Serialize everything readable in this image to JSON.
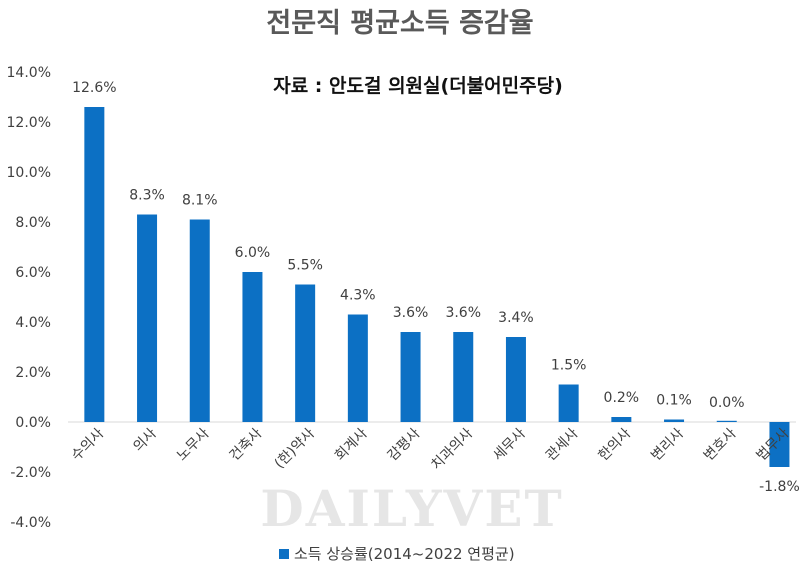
{
  "chart_data": {
    "type": "bar",
    "title": "전문직 평균소득 증감율",
    "subtitle": "자료 : 안도걸 의원실(더불어민주당)",
    "categories": [
      "수의사",
      "의사",
      "노무사",
      "건축사",
      "(한)약사",
      "회계사",
      "감평사",
      "치과의사",
      "세무사",
      "관세사",
      "한의사",
      "변리사",
      "변호사",
      "법무사"
    ],
    "series": [
      {
        "name": "소득 상승률(2014~2022 연평균)",
        "values": [
          12.6,
          8.3,
          8.1,
          6.0,
          5.5,
          4.3,
          3.6,
          3.6,
          3.4,
          1.5,
          0.2,
          0.1,
          0.0,
          -1.8
        ],
        "labels": [
          "12.6%",
          "8.3%",
          "8.1%",
          "6.0%",
          "5.5%",
          "4.3%",
          "3.6%",
          "3.6%",
          "3.4%",
          "1.5%",
          "0.2%",
          "0.1%",
          "0.0%",
          "-1.8%"
        ]
      }
    ],
    "yticks": [
      -4,
      -2,
      0,
      2,
      4,
      6,
      8,
      10,
      12,
      14
    ],
    "ytick_labels": [
      "-4.0%",
      "-2.0%",
      "0.0%",
      "2.0%",
      "4.0%",
      "6.0%",
      "8.0%",
      "10.0%",
      "12.0%",
      "14.0%"
    ],
    "ylim": [
      -4,
      14
    ],
    "xlabel": "",
    "ylabel": "",
    "grid": false,
    "legend": "bottom",
    "bar_color": "#0c70c4"
  },
  "watermark": "DAILYVET"
}
